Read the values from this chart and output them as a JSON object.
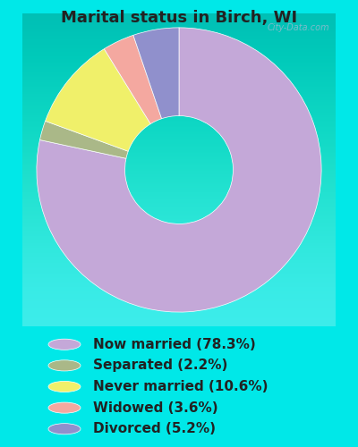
{
  "title": "Marital status in Birch, WI",
  "slices": [
    78.3,
    2.2,
    10.6,
    3.6,
    5.2
  ],
  "labels": [
    "Now married (78.3%)",
    "Separated (2.2%)",
    "Never married (10.6%)",
    "Widowed (3.6%)",
    "Divorced (5.2%)"
  ],
  "colors": [
    "#c4a8d8",
    "#aab888",
    "#f0f06a",
    "#f4a8a0",
    "#9090cc"
  ],
  "bg_outer": "#00e8e8",
  "bg_chart_gradient_top": "#e8f2e0",
  "bg_chart_gradient_bottom": "#f8fef8",
  "watermark": "City-Data.com",
  "title_fontsize": 13,
  "legend_fontsize": 11,
  "title_color": "#222222",
  "legend_text_color": "#222222"
}
